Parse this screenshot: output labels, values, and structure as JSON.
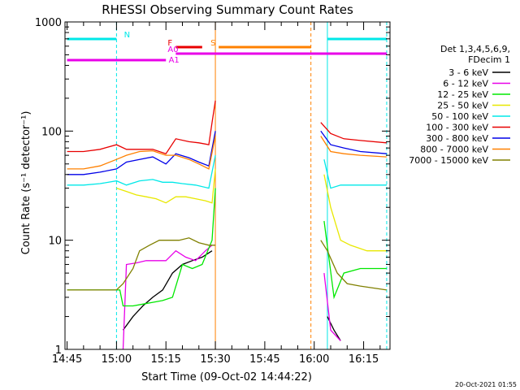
{
  "chart_data": {
    "type": "line",
    "title": "RHESSI Observing Summary Count Rates",
    "xlabel": "Start Time (09-Oct-02 14:44:22)",
    "ylabel": "Count Rate (s⁻¹ detector⁻¹)",
    "y_scale": "log",
    "ylim": [
      1,
      1000
    ],
    "xlim": [
      "14:44:22",
      "16:23"
    ],
    "x_ticks": [
      "14:45",
      "15:00",
      "15:15",
      "15:30",
      "15:45",
      "16:00",
      "16:15"
    ],
    "y_ticks": [
      "1",
      "10",
      "100",
      "1000"
    ],
    "timestamp": "20-Oct-2021 01:55",
    "legend": {
      "placement": "right",
      "header": [
        "Det 1,3,4,5,6,9,",
        "FDecim 1"
      ],
      "entries": [
        {
          "label": "3 - 6 keV",
          "color": "#000000"
        },
        {
          "label": "6 - 12 keV",
          "color": "#e800e8"
        },
        {
          "label": "12 - 25 keV",
          "color": "#00e800"
        },
        {
          "label": "25 - 50 keV",
          "color": "#e8e800"
        },
        {
          "label": "50 - 100 keV",
          "color": "#00e8e8"
        },
        {
          "label": "100 - 300 keV",
          "color": "#e80000"
        },
        {
          "label": "300 - 800 keV",
          "color": "#0000e8"
        },
        {
          "label": "800 - 7000 keV",
          "color": "#ff8000"
        },
        {
          "label": "7000 - 15000 keV",
          "color": "#808000"
        }
      ]
    },
    "flags": [
      {
        "label": "N",
        "color": "#00e8e8",
        "segments": [
          [
            "14:45",
            "15:00"
          ],
          [
            "16:04",
            "16:22"
          ]
        ]
      },
      {
        "label": "S",
        "color": "#ff8000",
        "segments": [
          [
            "15:31",
            "15:59"
          ]
        ]
      },
      {
        "label": "F",
        "color": "#e80000",
        "segments": [
          [
            "15:18",
            "15:26"
          ]
        ]
      },
      {
        "label": "A0",
        "color": "#e800e8",
        "segments": [
          [
            "15:18",
            "16:22"
          ]
        ]
      },
      {
        "label": "A1",
        "color": "#e800e8",
        "segments": [
          [
            "14:45",
            "15:15"
          ]
        ]
      }
    ],
    "vlines": [
      {
        "t": "15:00",
        "color": "#00e8e8",
        "style": "dash"
      },
      {
        "t": "15:30",
        "color": "#ff8000",
        "style": "solid"
      },
      {
        "t": "15:59",
        "color": "#ff8000",
        "style": "dash"
      },
      {
        "t": "16:04",
        "color": "#00e8e8",
        "style": "solid"
      },
      {
        "t": "16:22",
        "color": "#00e8e8",
        "style": "dash"
      }
    ],
    "series": [
      {
        "name": "3 - 6 keV",
        "color": "#000000",
        "segments": [
          [
            [
              "15:02",
              1.5
            ],
            [
              "15:05",
              2
            ],
            [
              "15:08",
              2.5
            ],
            [
              "15:11",
              3
            ],
            [
              "15:14",
              3.5
            ],
            [
              "15:17",
              5
            ],
            [
              "15:20",
              6
            ],
            [
              "15:23",
              6.5
            ],
            [
              "15:26",
              7
            ],
            [
              "15:29",
              8
            ]
          ],
          [
            [
              "16:04",
              2
            ],
            [
              "16:06",
              1.5
            ],
            [
              "16:08",
              1.2
            ]
          ]
        ]
      },
      {
        "name": "6 - 12 keV",
        "color": "#e800e8",
        "segments": [
          [
            [
              "15:02",
              1
            ],
            [
              "15:03",
              6
            ],
            [
              "15:06",
              6.2
            ],
            [
              "15:09",
              6.5
            ],
            [
              "15:12",
              6.5
            ],
            [
              "15:15",
              6.5
            ],
            [
              "15:18",
              8
            ],
            [
              "15:21",
              7
            ],
            [
              "15:24",
              6.5
            ],
            [
              "15:27",
              8
            ],
            [
              "15:29",
              9
            ]
          ],
          [
            [
              "16:03",
              5
            ],
            [
              "16:05",
              1.5
            ],
            [
              "16:08",
              1.2
            ]
          ]
        ]
      },
      {
        "name": "12 - 25 keV",
        "color": "#00e800",
        "segments": [
          [
            [
              "14:45",
              3.5
            ],
            [
              "15:01",
              3.5
            ],
            [
              "15:02",
              2.5
            ],
            [
              "15:05",
              2.5
            ],
            [
              "15:08",
              2.6
            ],
            [
              "15:11",
              2.7
            ],
            [
              "15:14",
              2.8
            ],
            [
              "15:17",
              3
            ],
            [
              "15:20",
              6
            ],
            [
              "15:23",
              5.5
            ],
            [
              "15:26",
              6
            ],
            [
              "15:29",
              10
            ],
            [
              "15:30",
              30
            ]
          ],
          [
            [
              "16:03",
              15
            ],
            [
              "16:06",
              3
            ],
            [
              "16:09",
              5
            ],
            [
              "16:14",
              5.5
            ],
            [
              "16:22",
              5.5
            ]
          ]
        ]
      },
      {
        "name": "25 - 50 keV",
        "color": "#e8e800",
        "segments": [
          [
            [
              "15:00",
              30
            ],
            [
              "15:03",
              28
            ],
            [
              "15:06",
              26
            ],
            [
              "15:09",
              25
            ],
            [
              "15:12",
              24
            ],
            [
              "15:15",
              22
            ],
            [
              "15:18",
              25
            ],
            [
              "15:21",
              25
            ],
            [
              "15:24",
              24
            ],
            [
              "15:27",
              23
            ],
            [
              "15:29",
              22
            ],
            [
              "15:30",
              45
            ]
          ],
          [
            [
              "16:03",
              40
            ],
            [
              "16:05",
              20
            ],
            [
              "16:08",
              10
            ],
            [
              "16:11",
              9
            ],
            [
              "16:16",
              8
            ],
            [
              "16:22",
              8
            ]
          ]
        ]
      },
      {
        "name": "50 - 100 keV",
        "color": "#00e8e8",
        "segments": [
          [
            [
              "14:45",
              32
            ],
            [
              "14:50",
              32
            ],
            [
              "14:55",
              33
            ],
            [
              "15:00",
              35
            ],
            [
              "15:03",
              32
            ],
            [
              "15:07",
              35
            ],
            [
              "15:11",
              36
            ],
            [
              "15:14",
              34
            ],
            [
              "15:17",
              34
            ],
            [
              "15:20",
              33
            ],
            [
              "15:24",
              32
            ],
            [
              "15:28",
              30
            ],
            [
              "15:30",
              60
            ]
          ],
          [
            [
              "16:03",
              55
            ],
            [
              "16:05",
              30
            ],
            [
              "16:08",
              32
            ],
            [
              "16:14",
              32
            ],
            [
              "16:22",
              32
            ]
          ]
        ]
      },
      {
        "name": "100 - 300 keV",
        "color": "#e80000",
        "segments": [
          [
            [
              "14:45",
              65
            ],
            [
              "14:50",
              65
            ],
            [
              "14:55",
              68
            ],
            [
              "15:00",
              75
            ],
            [
              "15:03",
              68
            ],
            [
              "15:07",
              68
            ],
            [
              "15:11",
              68
            ],
            [
              "15:15",
              62
            ],
            [
              "15:18",
              85
            ],
            [
              "15:22",
              80
            ],
            [
              "15:25",
              78
            ],
            [
              "15:28",
              75
            ],
            [
              "15:29",
              120
            ],
            [
              "15:30",
              190
            ]
          ],
          [
            [
              "16:02",
              120
            ],
            [
              "16:05",
              95
            ],
            [
              "16:09",
              85
            ],
            [
              "16:14",
              82
            ],
            [
              "16:22",
              78
            ]
          ]
        ]
      },
      {
        "name": "300 - 800 keV",
        "color": "#0000e8",
        "segments": [
          [
            [
              "14:45",
              40
            ],
            [
              "14:50",
              40
            ],
            [
              "14:55",
              42
            ],
            [
              "15:00",
              45
            ],
            [
              "15:03",
              52
            ],
            [
              "15:07",
              55
            ],
            [
              "15:11",
              58
            ],
            [
              "15:15",
              50
            ],
            [
              "15:18",
              62
            ],
            [
              "15:22",
              57
            ],
            [
              "15:25",
              52
            ],
            [
              "15:28",
              48
            ],
            [
              "15:30",
              100
            ]
          ],
          [
            [
              "16:02",
              100
            ],
            [
              "16:05",
              75
            ],
            [
              "16:09",
              70
            ],
            [
              "16:14",
              65
            ],
            [
              "16:22",
              62
            ]
          ]
        ]
      },
      {
        "name": "800 - 7000 keV",
        "color": "#ff8000",
        "segments": [
          [
            [
              "14:45",
              45
            ],
            [
              "14:50",
              45
            ],
            [
              "14:55",
              48
            ],
            [
              "15:00",
              55
            ],
            [
              "15:03",
              60
            ],
            [
              "15:07",
              65
            ],
            [
              "15:11",
              66
            ],
            [
              "15:15",
              60
            ],
            [
              "15:18",
              60
            ],
            [
              "15:22",
              55
            ],
            [
              "15:25",
              50
            ],
            [
              "15:28",
              45
            ],
            [
              "15:30",
              90
            ]
          ],
          [
            [
              "16:02",
              90
            ],
            [
              "16:05",
              65
            ],
            [
              "16:09",
              62
            ],
            [
              "16:14",
              60
            ],
            [
              "16:22",
              58
            ]
          ]
        ]
      },
      {
        "name": "7000 - 15000 keV",
        "color": "#808000",
        "segments": [
          [
            [
              "14:45",
              3.5
            ],
            [
              "15:00",
              3.5
            ],
            [
              "15:02",
              4
            ],
            [
              "15:05",
              5.5
            ],
            [
              "15:07",
              8
            ],
            [
              "15:10",
              9
            ],
            [
              "15:13",
              10
            ],
            [
              "15:16",
              10
            ],
            [
              "15:19",
              10
            ],
            [
              "15:22",
              10.5
            ],
            [
              "15:25",
              9.5
            ],
            [
              "15:28",
              9
            ],
            [
              "15:30",
              9
            ]
          ],
          [
            [
              "16:02",
              10
            ],
            [
              "16:04",
              8
            ],
            [
              "16:07",
              5
            ],
            [
              "16:10",
              4
            ],
            [
              "16:14",
              3.8
            ],
            [
              "16:22",
              3.5
            ]
          ]
        ]
      }
    ]
  }
}
